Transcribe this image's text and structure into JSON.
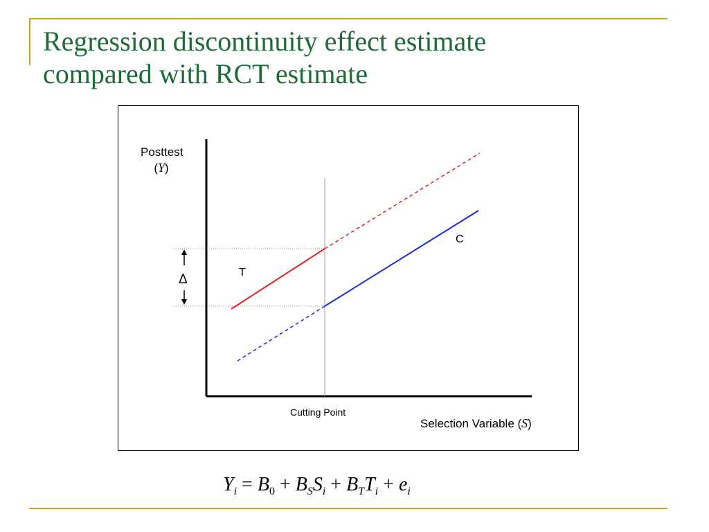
{
  "slide": {
    "title_line1": "Regression discontinuity effect estimate",
    "title_line2": "compared with RCT estimate",
    "accent_color": "#c9a227",
    "title_color": "#1e6b38"
  },
  "diagram": {
    "y_axis_label": "Posttest",
    "y_axis_symbol": "Y",
    "x_axis_label": "Selection Variable",
    "x_axis_symbol": "S",
    "cutting_point_label": "Cutting Point",
    "treatment_label": "T",
    "control_label": "C",
    "delta_label": "Δ",
    "treatment_color": "#e02020",
    "control_color": "#1a2bd0"
  },
  "formula": {
    "Y": "Y",
    "i1": "i",
    "eq": " = ",
    "B0": "B",
    "sub0": "0",
    "plus1": " + ",
    "BS": "B",
    "subS": "S",
    "S": "S",
    "i2": "i",
    "plus2": " + ",
    "BT": "B",
    "subT": "T",
    "T": "T",
    "i3": "i",
    "plus3": " + ",
    "e": "e",
    "i4": "i"
  }
}
